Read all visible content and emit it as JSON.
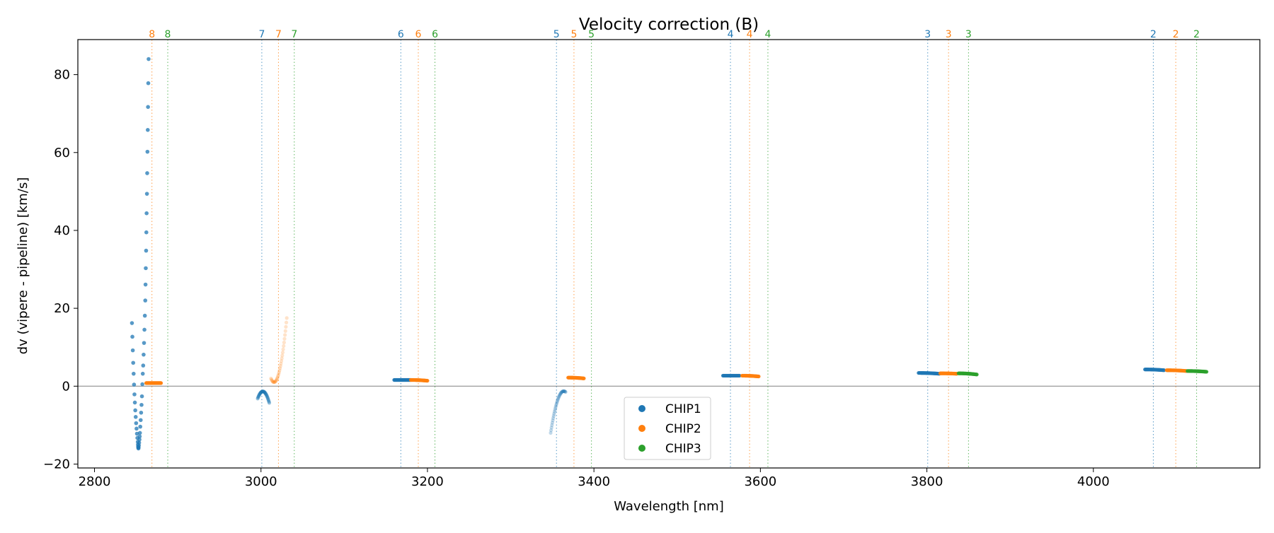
{
  "chart_data": {
    "type": "scatter",
    "title": "Velocity correction (B)",
    "xlabel": "Wavelength [nm]",
    "ylabel": "dv (vipere - pipeline) [km/s]",
    "xlim": [
      2780,
      4200
    ],
    "ylim": [
      -21,
      89
    ],
    "xticks": [
      2800,
      3000,
      3200,
      3400,
      3600,
      3800,
      4000
    ],
    "yticks": [
      -20,
      0,
      20,
      40,
      60,
      80
    ],
    "zero_line": 0,
    "grid": false,
    "legend_position": "lower-center",
    "colors": {
      "CHIP1": "#1f77b4",
      "CHIP2": "#ff7f0e",
      "CHIP3": "#2ca02c",
      "zero_line": "#808080"
    },
    "order_markers": [
      {
        "label": "8",
        "chip": "CHIP2",
        "x": 2869
      },
      {
        "label": "8",
        "chip": "CHIP3",
        "x": 2888
      },
      {
        "label": "7",
        "chip": "CHIP1",
        "x": 3001
      },
      {
        "label": "7",
        "chip": "CHIP2",
        "x": 3021
      },
      {
        "label": "7",
        "chip": "CHIP3",
        "x": 3040
      },
      {
        "label": "6",
        "chip": "CHIP1",
        "x": 3168
      },
      {
        "label": "6",
        "chip": "CHIP2",
        "x": 3189
      },
      {
        "label": "6",
        "chip": "CHIP3",
        "x": 3209
      },
      {
        "label": "5",
        "chip": "CHIP1",
        "x": 3355
      },
      {
        "label": "5",
        "chip": "CHIP2",
        "x": 3376
      },
      {
        "label": "5",
        "chip": "CHIP3",
        "x": 3397
      },
      {
        "label": "4",
        "chip": "CHIP1",
        "x": 3564
      },
      {
        "label": "4",
        "chip": "CHIP2",
        "x": 3587
      },
      {
        "label": "4",
        "chip": "CHIP3",
        "x": 3609
      },
      {
        "label": "3",
        "chip": "CHIP1",
        "x": 3801
      },
      {
        "label": "3",
        "chip": "CHIP2",
        "x": 3826
      },
      {
        "label": "3",
        "chip": "CHIP3",
        "x": 3850
      },
      {
        "label": "2",
        "chip": "CHIP1",
        "x": 4072
      },
      {
        "label": "2",
        "chip": "CHIP2",
        "x": 4099
      },
      {
        "label": "2",
        "chip": "CHIP3",
        "x": 4124
      }
    ],
    "series": [
      {
        "name": "CHIP1",
        "points": [
          [
            2845,
            16.2
          ],
          [
            2845.5,
            12.7
          ],
          [
            2846,
            9.2
          ],
          [
            2846.5,
            6.0
          ],
          [
            2847,
            3.2
          ],
          [
            2847.5,
            0.4
          ],
          [
            2848,
            -2.1
          ],
          [
            2848.5,
            -4.2
          ],
          [
            2849,
            -6.2
          ],
          [
            2849.5,
            -7.9
          ],
          [
            2850,
            -9.5
          ],
          [
            2850.5,
            -10.9
          ],
          [
            2851,
            -12.2
          ],
          [
            2851.5,
            -13.3
          ],
          [
            2852,
            -14.3
          ],
          [
            2852.2,
            -15.0
          ],
          [
            2852.4,
            -15.5
          ],
          [
            2852.6,
            -15.8
          ],
          [
            2852.8,
            -16.0
          ],
          [
            2853,
            -15.7
          ],
          [
            2853.3,
            -15.2
          ],
          [
            2853.6,
            -14.5
          ],
          [
            2854,
            -13.7
          ],
          [
            2854.3,
            -12.9
          ],
          [
            2854.6,
            -12.0
          ],
          [
            2855,
            -10.4
          ],
          [
            2855.5,
            -8.7
          ],
          [
            2856,
            -6.8
          ],
          [
            2856.5,
            -4.8
          ],
          [
            2857,
            -2.6
          ],
          [
            2857.5,
            0.5
          ],
          [
            2858,
            3.2
          ],
          [
            2858.5,
            5.3
          ],
          [
            2859,
            8.1
          ],
          [
            2859.5,
            11.1
          ],
          [
            2860,
            14.5
          ],
          [
            2860.5,
            18.1
          ],
          [
            2861,
            22.0
          ],
          [
            2861.3,
            26.1
          ],
          [
            2861.6,
            30.3
          ],
          [
            2862,
            34.8
          ],
          [
            2862.3,
            39.5
          ],
          [
            2862.6,
            44.4
          ],
          [
            2863,
            49.4
          ],
          [
            2863.3,
            54.7
          ],
          [
            2863.6,
            60.2
          ],
          [
            2864,
            65.8
          ],
          [
            2864.3,
            71.7
          ],
          [
            2864.6,
            77.8
          ],
          [
            2865,
            84.0
          ]
        ],
        "segments": [
          {
            "x_start": 2996,
            "x_end": 3010,
            "y_start": -3.2,
            "y_peak": 1.0,
            "y_end": -4.3,
            "opacity": 0.4
          },
          {
            "x_start": 3160,
            "x_end": 3180,
            "y_start": 1.6,
            "y_peak": 1.6,
            "y_end": 1.6,
            "opacity": 0.8
          },
          {
            "x_start": 3348,
            "x_end": 3366,
            "y_start": -12.0,
            "y_peak": 0.3,
            "y_end": -1.5,
            "opacity": 0.28
          },
          {
            "x_start": 3555,
            "x_end": 3575,
            "y_start": 2.7,
            "y_peak": 2.7,
            "y_end": 2.7,
            "opacity": 0.8
          },
          {
            "x_start": 3790,
            "x_end": 3815,
            "y_start": 3.4,
            "y_peak": 3.4,
            "y_end": 3.2,
            "opacity": 0.8
          },
          {
            "x_start": 4062,
            "x_end": 4085,
            "y_start": 4.3,
            "y_peak": 4.3,
            "y_end": 4.1,
            "opacity": 0.8
          }
        ]
      },
      {
        "name": "CHIP2",
        "segments": [
          {
            "x_start": 2862,
            "x_end": 2880,
            "y_start": 0.8,
            "y_peak": 0.8,
            "y_end": 0.8,
            "opacity": 0.8
          },
          {
            "x_start": 3012,
            "x_end": 3031,
            "y_start": 2.0,
            "y_peak": -3.0,
            "y_end": 17.5,
            "opacity": 0.22
          },
          {
            "x_start": 3180,
            "x_end": 3200,
            "y_start": 1.6,
            "y_peak": 1.6,
            "y_end": 1.4,
            "opacity": 0.8
          },
          {
            "x_start": 3369,
            "x_end": 3388,
            "y_start": 2.2,
            "y_peak": 2.2,
            "y_end": 2.0,
            "opacity": 0.8
          },
          {
            "x_start": 3578,
            "x_end": 3598,
            "y_start": 2.7,
            "y_peak": 2.7,
            "y_end": 2.5,
            "opacity": 0.8
          },
          {
            "x_start": 3816,
            "x_end": 3836,
            "y_start": 3.3,
            "y_peak": 3.3,
            "y_end": 3.2,
            "opacity": 0.8
          },
          {
            "x_start": 4088,
            "x_end": 4112,
            "y_start": 4.1,
            "y_peak": 4.1,
            "y_end": 3.9,
            "opacity": 0.8
          }
        ]
      },
      {
        "name": "CHIP3",
        "segments": [
          {
            "x_start": 3838,
            "x_end": 3860,
            "y_start": 3.3,
            "y_peak": 3.3,
            "y_end": 3.0,
            "opacity": 0.8
          },
          {
            "x_start": 4113,
            "x_end": 4136,
            "y_start": 3.9,
            "y_peak": 3.9,
            "y_end": 3.7,
            "opacity": 0.8
          }
        ]
      }
    ]
  }
}
